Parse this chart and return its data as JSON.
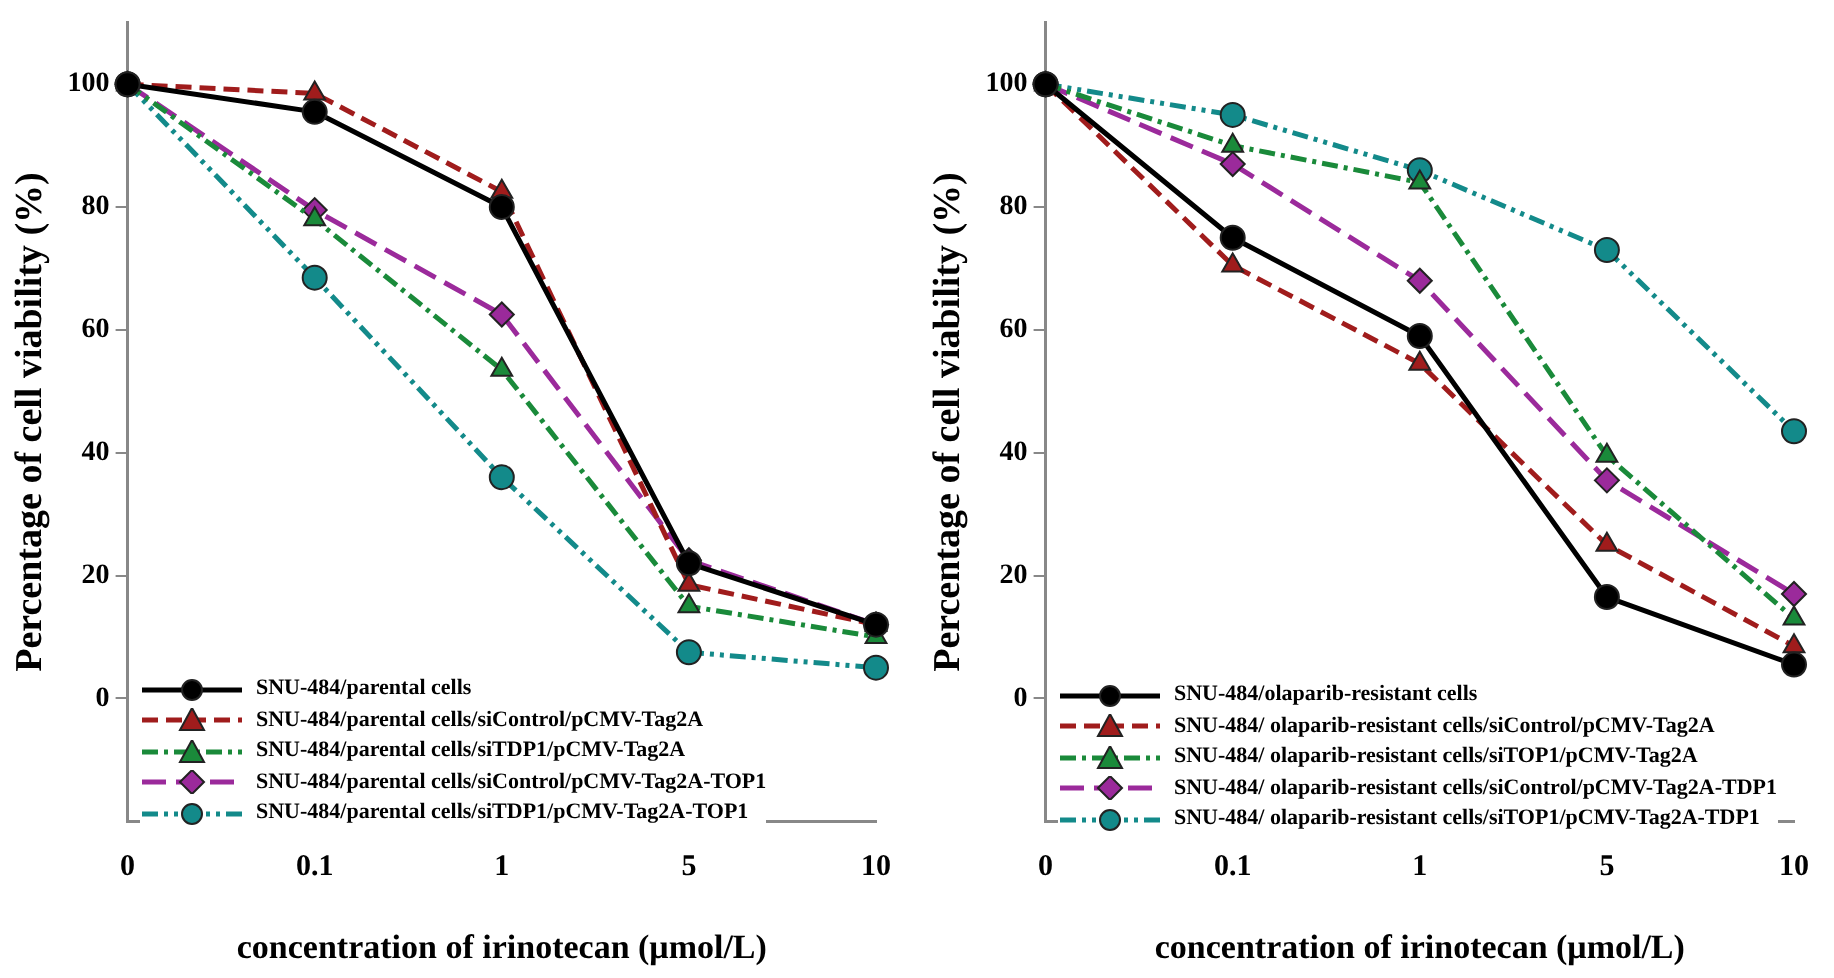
{
  "chart_data": [
    {
      "type": "line",
      "xlabel": "concentration of irinotecan (μmol/L)",
      "ylabel": "Percentage of cell viability (%)",
      "categories": [
        "0",
        "0.1",
        "1",
        "5",
        "10"
      ],
      "ylim": [
        -20,
        110
      ],
      "yticks": [
        0,
        20,
        40,
        60,
        80,
        100
      ],
      "grid": false,
      "legend": "bottom left",
      "series": [
        {
          "name": "SNU-484/parental cells",
          "color": "#000000",
          "marker": "circle",
          "line_style": "solid",
          "values": [
            100,
            95.5,
            80,
            22,
            12
          ]
        },
        {
          "name": "SNU-484/parental cells/siControl/pCMV-Tag2A",
          "color": "#a01c1c",
          "marker": "triangle",
          "line_style": "dashed",
          "values": [
            100,
            98.5,
            82.5,
            18.5,
            12
          ]
        },
        {
          "name": "SNU-484/parental cells/siTDP1/pCMV-Tag2A",
          "color": "#1a8a3a",
          "marker": "triangle",
          "line_style": "dashdot",
          "values": [
            100,
            78,
            53.5,
            15,
            10
          ]
        },
        {
          "name": "SNU-484/parental cells/siControl/pCMV-Tag2A-TOP1",
          "color": "#9b2a9b",
          "marker": "diamond",
          "line_style": "longdash",
          "values": [
            100,
            79.5,
            62.5,
            22.5,
            12
          ]
        },
        {
          "name": "SNU-484/parental cells/siTDP1/pCMV-Tag2A-TOP1",
          "color": "#138a8a",
          "marker": "circle",
          "line_style": "dashdotdot",
          "values": [
            100,
            68.5,
            36,
            7.5,
            5
          ]
        }
      ]
    },
    {
      "type": "line",
      "xlabel": "concentration of irinotecan (μmol/L)",
      "ylabel": "Percentage of cell viability (%)",
      "categories": [
        "0",
        "0.1",
        "1",
        "5",
        "10"
      ],
      "ylim": [
        -20,
        110
      ],
      "yticks": [
        0,
        20,
        40,
        60,
        80,
        100
      ],
      "grid": false,
      "legend": "bottom left",
      "series": [
        {
          "name": "SNU-484/olaparib-resistant cells",
          "color": "#000000",
          "marker": "circle",
          "line_style": "solid",
          "values": [
            100,
            75,
            59,
            16.5,
            5.5
          ]
        },
        {
          "name": "SNU-484/ olaparib-resistant cells/siControl/pCMV-Tag2A",
          "color": "#a01c1c",
          "marker": "triangle",
          "line_style": "dashed",
          "values": [
            100,
            70.5,
            54.5,
            25,
            8.5
          ]
        },
        {
          "name": "SNU-484/ olaparib-resistant cells/siTOP1/pCMV-Tag2A",
          "color": "#1a8a3a",
          "marker": "triangle",
          "line_style": "dashdot",
          "values": [
            100,
            90,
            84,
            39.5,
            13
          ]
        },
        {
          "name": "SNU-484/ olaparib-resistant cells/siControl/pCMV-Tag2A-TDP1",
          "color": "#9b2a9b",
          "marker": "diamond",
          "line_style": "longdash",
          "values": [
            100,
            87,
            68,
            35.5,
            17
          ]
        },
        {
          "name": "SNU-484/ olaparib-resistant cells/siTOP1/pCMV-Tag2A-TDP1",
          "color": "#138a8a",
          "marker": "circle",
          "line_style": "dashdotdot",
          "values": [
            100,
            95,
            86,
            73,
            43.5
          ]
        }
      ]
    }
  ]
}
